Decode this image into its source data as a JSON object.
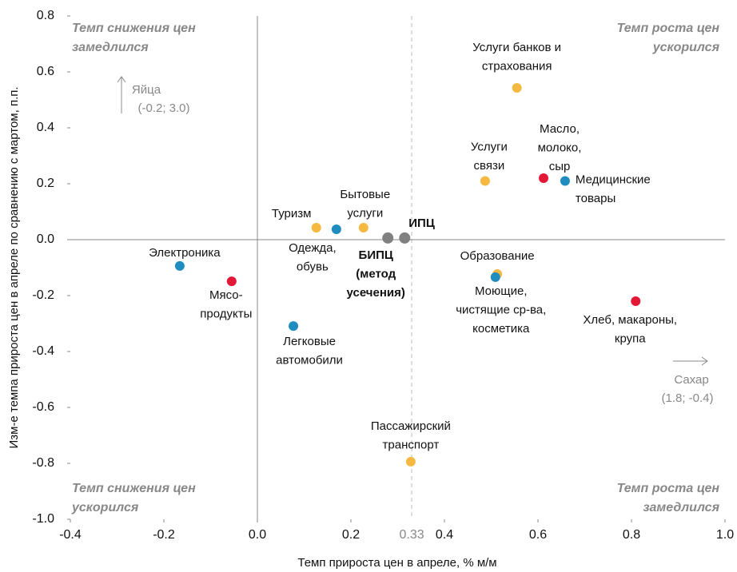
{
  "chart_data": {
    "type": "scatter",
    "x_label": "Темп прироста цен в апреле, % м/м",
    "y_label": "Изм-е темпа прироста цен в апреле по сравнению с мартом, п.п.",
    "xlim": [
      -0.4,
      1.0
    ],
    "ylim": [
      -1.0,
      0.8
    ],
    "xticks": [
      -0.4,
      -0.2,
      0.0,
      0.2,
      0.4,
      0.6,
      0.8,
      1.0
    ],
    "yticks": [
      -1.0,
      -0.8,
      -0.6,
      -0.4,
      -0.2,
      0.0,
      0.2,
      0.4,
      0.6,
      0.8
    ],
    "reference_x": 0.33,
    "quadrant_labels": {
      "top_left": [
        "Темп снижения цен",
        "замедлился"
      ],
      "top_right": [
        "Темп роста цен",
        "ускорился"
      ],
      "bottom_left": [
        "Темп снижения цен",
        "ускорился"
      ],
      "bottom_right": [
        "Темп роста цен",
        "замедлился"
      ]
    },
    "annotations": [
      {
        "lines": [
          "Яйца",
          "(-0.2; 3.0)"
        ],
        "direction": "up"
      },
      {
        "lines": [
          "Сахар",
          "(1.8; -0.4)"
        ],
        "direction": "right"
      }
    ],
    "points": [
      {
        "label": [
          "Услуги банков и",
          "страхования"
        ],
        "x": 0.555,
        "y": 0.543,
        "color": "#f5b942"
      },
      {
        "label": [
          "Масло,",
          "молоко,",
          "сыр"
        ],
        "x": 0.612,
        "y": 0.22,
        "color": "#e31837"
      },
      {
        "label": [
          "Медицинские",
          "товары"
        ],
        "x": 0.658,
        "y": 0.21,
        "color": "#1f8dbf"
      },
      {
        "label": [
          "Услуги",
          "связи"
        ],
        "x": 0.487,
        "y": 0.21,
        "color": "#f5b942"
      },
      {
        "label": [
          "Туризм"
        ],
        "x": 0.126,
        "y": 0.043,
        "color": "#f5b942"
      },
      {
        "label": [
          "Одежда,",
          "обувь"
        ],
        "x": 0.169,
        "y": 0.037,
        "color": "#1f8dbf"
      },
      {
        "label": [
          "Бытовые",
          "услуги"
        ],
        "x": 0.227,
        "y": 0.043,
        "color": "#f5b942"
      },
      {
        "label": [
          "БИПЦ",
          "(метод",
          "усечения)"
        ],
        "x": 0.279,
        "y": 0.006,
        "color": "#808080",
        "bold": true
      },
      {
        "label": [
          "ИПЦ"
        ],
        "x": 0.315,
        "y": 0.006,
        "color": "#808080",
        "bold": true
      },
      {
        "label": [
          "Электроника"
        ],
        "x": -0.166,
        "y": -0.094,
        "color": "#1f8dbf"
      },
      {
        "label": [
          "Мясо-",
          "продукты"
        ],
        "x": -0.055,
        "y": -0.149,
        "color": "#e31837"
      },
      {
        "label": [
          "Легковые",
          "автомобили"
        ],
        "x": 0.077,
        "y": -0.309,
        "color": "#1f8dbf"
      },
      {
        "label": [
          "Образование"
        ],
        "x": 0.513,
        "y": -0.123,
        "color": "#f5b942"
      },
      {
        "label": [
          "Моющие,",
          "чистящие ср-ва,",
          "косметика"
        ],
        "x": 0.509,
        "y": -0.134,
        "color": "#1f8dbf"
      },
      {
        "label": [
          "Хлеб, макароны,",
          "крупа"
        ],
        "x": 0.809,
        "y": -0.22,
        "color": "#e31837"
      },
      {
        "label": [
          "Пассажирский",
          "транспорт"
        ],
        "x": 0.328,
        "y": -0.794,
        "color": "#f5b942"
      }
    ]
  }
}
